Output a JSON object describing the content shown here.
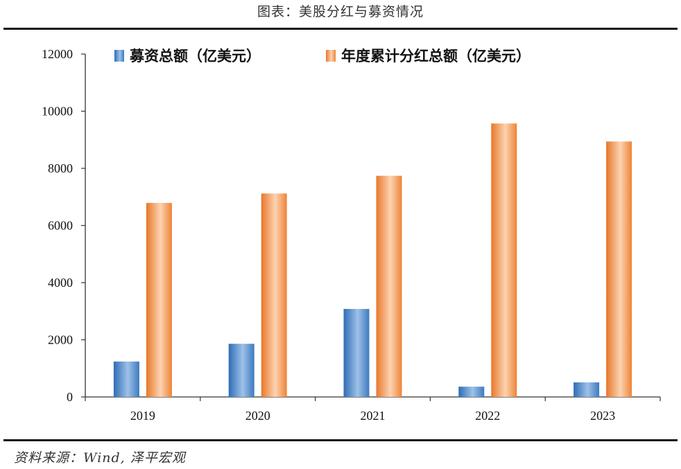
{
  "header": {
    "title": "图表：美股分红与募资情况"
  },
  "footer": {
    "source": "资料来源：Wind, 泽平宏观"
  },
  "chart_data": {
    "type": "bar",
    "title": "图表：美股分红与募资情况",
    "categories": [
      "2019",
      "2020",
      "2021",
      "2022",
      "2023"
    ],
    "series": [
      {
        "name": "募资总额（亿美元）",
        "values": [
          1240,
          1860,
          3080,
          360,
          510
        ],
        "color": "#4f87c9"
      },
      {
        "name": "年度累计分红总额（亿美元）",
        "values": [
          6790,
          7120,
          7740,
          9570,
          8940
        ],
        "color": "#f08a3c"
      }
    ],
    "ylim": [
      0,
      12000
    ],
    "yticks": [
      "0",
      "2000",
      "4000",
      "6000",
      "8000",
      "10000",
      "12000"
    ],
    "grid": false,
    "legend_position": "top"
  }
}
